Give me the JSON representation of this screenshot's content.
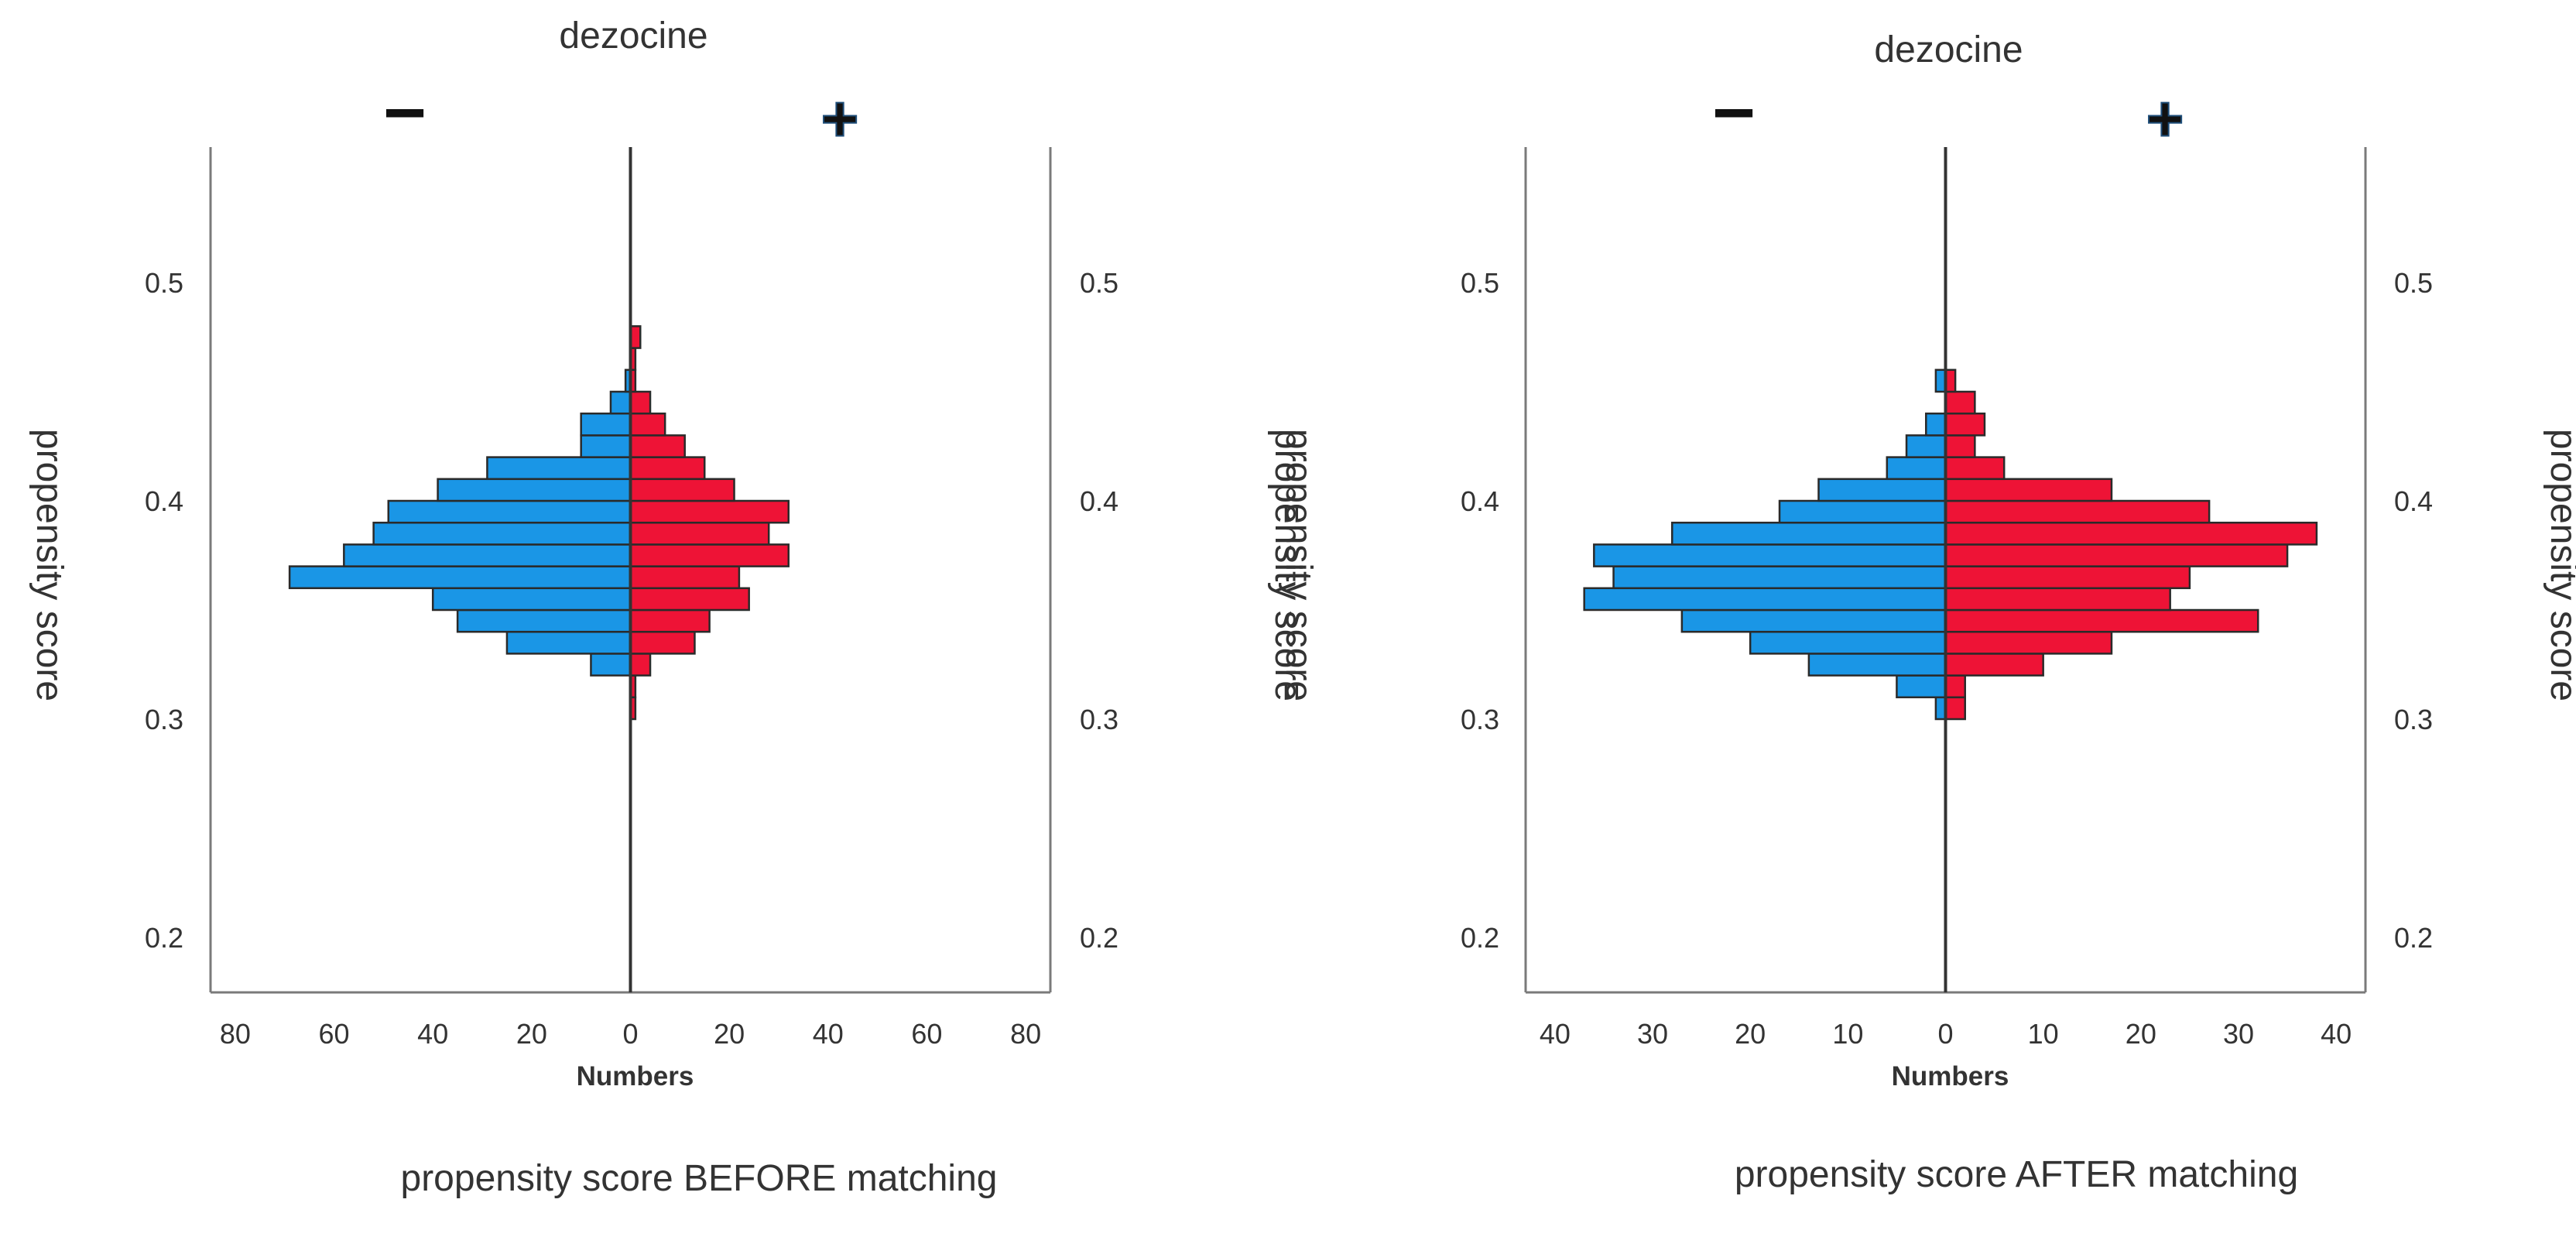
{
  "colors": {
    "negative": "#1a96e6",
    "positive": "#ee1336",
    "bar_stroke": "#2a2a2a",
    "axis": "#7a7a7a",
    "center_line": "#333333",
    "text": "#333333"
  },
  "chart_data": [
    {
      "type": "bar",
      "subtype": "back-to-back histogram",
      "title": "dezocine",
      "group_labels": {
        "left": "−",
        "right": "+"
      },
      "ylabel": "propensity score",
      "xlabel": "Numbers",
      "caption": "propensity score BEFORE matching",
      "ylim": [
        0.17,
        0.56
      ],
      "yticks": [
        0.2,
        0.3,
        0.4,
        0.5
      ],
      "ytick_labels": [
        "0.2",
        "0.3",
        "0.4",
        "0.5"
      ],
      "xlim": [
        -85,
        85
      ],
      "xticks": [
        -80,
        -60,
        -40,
        -20,
        0,
        20,
        40,
        60,
        80
      ],
      "xtick_labels": [
        "80",
        "60",
        "40",
        "20",
        "0",
        "20",
        "40",
        "60",
        "80"
      ],
      "bin_width": 0.01,
      "series": [
        {
          "name": "−",
          "side": "left",
          "bins": [
            {
              "y0": 0.32,
              "count": 8
            },
            {
              "y0": 0.33,
              "count": 25
            },
            {
              "y0": 0.34,
              "count": 35
            },
            {
              "y0": 0.35,
              "count": 40
            },
            {
              "y0": 0.36,
              "count": 69
            },
            {
              "y0": 0.37,
              "count": 58
            },
            {
              "y0": 0.38,
              "count": 52
            },
            {
              "y0": 0.39,
              "count": 49
            },
            {
              "y0": 0.4,
              "count": 39
            },
            {
              "y0": 0.41,
              "count": 29
            },
            {
              "y0": 0.42,
              "count": 10
            },
            {
              "y0": 0.43,
              "count": 10
            },
            {
              "y0": 0.44,
              "count": 4
            },
            {
              "y0": 0.45,
              "count": 1
            }
          ]
        },
        {
          "name": "+",
          "side": "right",
          "bins": [
            {
              "y0": 0.3,
              "count": 1
            },
            {
              "y0": 0.31,
              "count": 1
            },
            {
              "y0": 0.32,
              "count": 4
            },
            {
              "y0": 0.33,
              "count": 13
            },
            {
              "y0": 0.34,
              "count": 16
            },
            {
              "y0": 0.35,
              "count": 24
            },
            {
              "y0": 0.36,
              "count": 22
            },
            {
              "y0": 0.37,
              "count": 32
            },
            {
              "y0": 0.38,
              "count": 28
            },
            {
              "y0": 0.39,
              "count": 32
            },
            {
              "y0": 0.4,
              "count": 21
            },
            {
              "y0": 0.41,
              "count": 15
            },
            {
              "y0": 0.42,
              "count": 11
            },
            {
              "y0": 0.43,
              "count": 7
            },
            {
              "y0": 0.44,
              "count": 4
            },
            {
              "y0": 0.45,
              "count": 1
            },
            {
              "y0": 0.46,
              "count": 1
            },
            {
              "y0": 0.47,
              "count": 2
            }
          ]
        }
      ]
    },
    {
      "type": "bar",
      "subtype": "back-to-back histogram",
      "title": "dezocine",
      "group_labels": {
        "left": "−",
        "right": "+"
      },
      "ylabel": "propensity score",
      "xlabel": "Numbers",
      "caption": "propensity score AFTER matching",
      "ylim": [
        0.17,
        0.56
      ],
      "yticks": [
        0.2,
        0.3,
        0.4,
        0.5
      ],
      "ytick_labels": [
        "0.2",
        "0.3",
        "0.4",
        "0.5"
      ],
      "xlim": [
        -43,
        43
      ],
      "xticks": [
        -40,
        -30,
        -20,
        -10,
        0,
        10,
        20,
        30,
        40
      ],
      "xtick_labels": [
        "40",
        "30",
        "20",
        "10",
        "0",
        "10",
        "20",
        "30",
        "40"
      ],
      "bin_width": 0.01,
      "series": [
        {
          "name": "−",
          "side": "left",
          "bins": [
            {
              "y0": 0.3,
              "count": 1
            },
            {
              "y0": 0.31,
              "count": 5
            },
            {
              "y0": 0.32,
              "count": 14
            },
            {
              "y0": 0.33,
              "count": 20
            },
            {
              "y0": 0.34,
              "count": 27
            },
            {
              "y0": 0.35,
              "count": 37
            },
            {
              "y0": 0.36,
              "count": 34
            },
            {
              "y0": 0.37,
              "count": 36
            },
            {
              "y0": 0.38,
              "count": 28
            },
            {
              "y0": 0.39,
              "count": 17
            },
            {
              "y0": 0.4,
              "count": 13
            },
            {
              "y0": 0.41,
              "count": 6
            },
            {
              "y0": 0.42,
              "count": 4
            },
            {
              "y0": 0.43,
              "count": 2
            },
            {
              "y0": 0.45,
              "count": 1
            }
          ]
        },
        {
          "name": "+",
          "side": "right",
          "bins": [
            {
              "y0": 0.3,
              "count": 2
            },
            {
              "y0": 0.31,
              "count": 2
            },
            {
              "y0": 0.32,
              "count": 10
            },
            {
              "y0": 0.33,
              "count": 17
            },
            {
              "y0": 0.34,
              "count": 32
            },
            {
              "y0": 0.35,
              "count": 23
            },
            {
              "y0": 0.36,
              "count": 25
            },
            {
              "y0": 0.37,
              "count": 35
            },
            {
              "y0": 0.38,
              "count": 38
            },
            {
              "y0": 0.39,
              "count": 27
            },
            {
              "y0": 0.4,
              "count": 17
            },
            {
              "y0": 0.41,
              "count": 6
            },
            {
              "y0": 0.42,
              "count": 3
            },
            {
              "y0": 0.43,
              "count": 4
            },
            {
              "y0": 0.44,
              "count": 3
            },
            {
              "y0": 0.45,
              "count": 1
            }
          ]
        }
      ]
    }
  ]
}
